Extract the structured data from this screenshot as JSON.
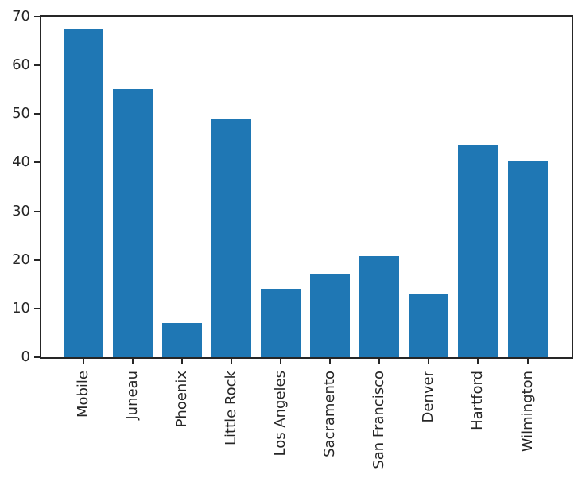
{
  "chart_data": {
    "type": "bar",
    "categories": [
      "Mobile",
      "Juneau",
      "Phoenix",
      "Little Rock",
      "Los Angeles",
      "Sacramento",
      "San Francisco",
      "Denver",
      "Hartford",
      "Wilmington"
    ],
    "values": [
      67.4,
      55.1,
      7.0,
      48.9,
      14.0,
      17.1,
      20.7,
      13.0,
      43.7,
      40.3
    ],
    "yticks": [
      0,
      10,
      20,
      30,
      40,
      50,
      60,
      70
    ],
    "ylim": [
      0,
      70
    ],
    "x_tick_rotation": 90,
    "grid": false,
    "legend_position": "none",
    "bar_color": "#1f77b4",
    "axis_color": "#262626",
    "text_color": "#262626",
    "background_color": "#ffffff"
  }
}
